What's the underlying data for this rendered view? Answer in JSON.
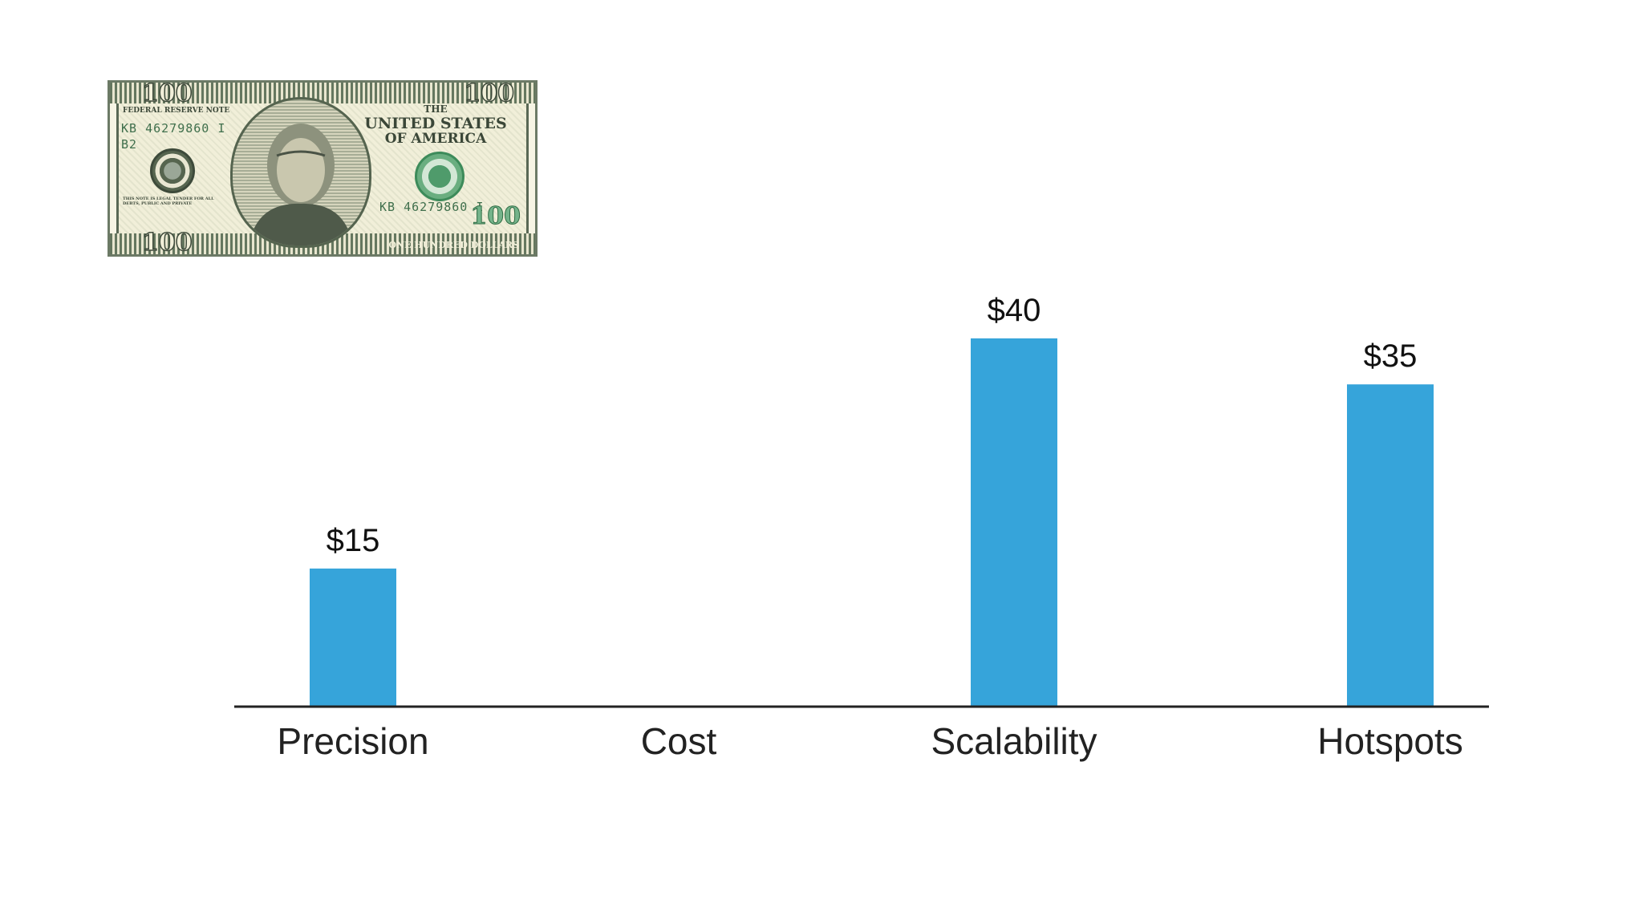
{
  "chart_data": {
    "type": "bar",
    "categories": [
      "Precision",
      "Cost",
      "Scalability",
      "Hotspots"
    ],
    "values": [
      15,
      0,
      40,
      35
    ],
    "value_labels": [
      "$15",
      "",
      "$40",
      "$35"
    ],
    "ylim": [
      0,
      48
    ],
    "bar_color": "#36a4da",
    "axis_color": "#222222",
    "grid": false,
    "legend": "none"
  },
  "banknote": {
    "corner_number": "100",
    "header": "FEDERAL RESERVE NOTE",
    "country_line1": "THE",
    "country_line2": "UNITED STATES",
    "country_line3": "OF AMERICA",
    "serial": "KB 46279860 I",
    "district": "B2",
    "legal_tender": "THIS NOTE IS LEGAL TENDER FOR ALL DEBTS, PUBLIC AND PRIVATE",
    "denomination_text": "ONE HUNDRED DOLLARS",
    "big_numeral": "100"
  }
}
